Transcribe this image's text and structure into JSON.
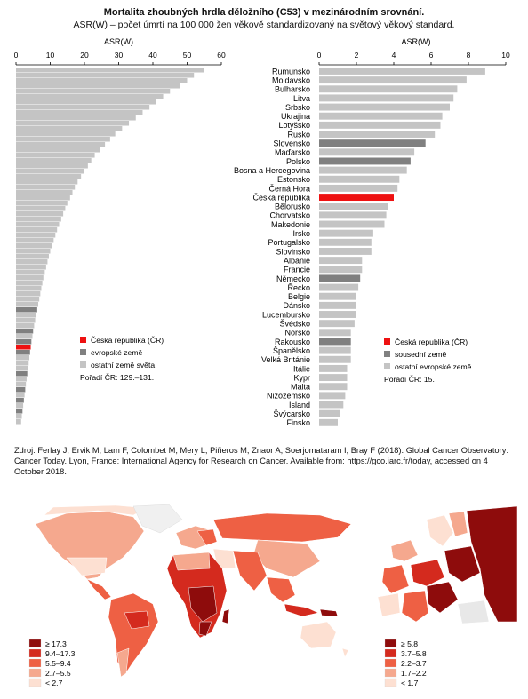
{
  "header": {
    "title": "Mortalita zhoubných hrdla děložního (C53) v mezinárodním srovnání.",
    "subtitle": "ASR(W) – počet úmrtí na 100 000 žen věkově standardizovaný na světový věkový standard."
  },
  "colors": {
    "cz": "#ee1111",
    "neighbor": "#808080",
    "other": "#c4c4c4"
  },
  "chart_data": [
    {
      "type": "bar",
      "orientation": "horizontal",
      "xlabel": "ASR(W)",
      "xlim": [
        0,
        60
      ],
      "ticks": [
        0,
        10,
        20,
        30,
        40,
        50,
        60
      ],
      "values": [
        55,
        52,
        50,
        48,
        45,
        43,
        41,
        39,
        37,
        35,
        33,
        31,
        29,
        27.5,
        26,
        24.5,
        23,
        22,
        21,
        20,
        19,
        18,
        17.2,
        16.5,
        15.8,
        15,
        14.4,
        13.8,
        13.2,
        12.6,
        12,
        11.5,
        11,
        10.5,
        10,
        9.6,
        9.2,
        8.8,
        8.4,
        8,
        7.7,
        7.4,
        7.1,
        6.8,
        6.5,
        6.2,
        5.9,
        5.6,
        5.3,
        5,
        4.8,
        4.5,
        4.3,
        4.1,
        3.9,
        3.7,
        3.5,
        3.3,
        3.1,
        2.9,
        2.7,
        2.5,
        2.3,
        2.1,
        1.9,
        1.7,
        1.5
      ],
      "legend": [
        {
          "label": "Česká republika (ČR)",
          "color": "#ee1111"
        },
        {
          "label": "evropské země",
          "color": "#808080"
        },
        {
          "label": "ostatní země světa",
          "color": "#c4c4c4"
        }
      ],
      "note": "Pořadí ČR: 129.–131."
    },
    {
      "type": "bar",
      "orientation": "horizontal",
      "xlabel": "ASR(W)",
      "xlim": [
        0,
        10
      ],
      "ticks": [
        0,
        2,
        4,
        6,
        8,
        10
      ],
      "categories": [
        "Rumunsko",
        "Moldavsko",
        "Bulharsko",
        "Litva",
        "Srbsko",
        "Ukrajina",
        "Lotyšsko",
        "Rusko",
        "Slovensko",
        "Maďarsko",
        "Polsko",
        "Bosna a Hercegovina",
        "Estonsko",
        "Černá Hora",
        "Česká republika",
        "Bělorusko",
        "Chorvatsko",
        "Makedonie",
        "Irsko",
        "Portugalsko",
        "Slovinsko",
        "Albánie",
        "Francie",
        "Německo",
        "Řecko",
        "Belgie",
        "Dánsko",
        "Lucembursko",
        "Švédsko",
        "Norsko",
        "Rakousko",
        "Španělsko",
        "Velká Británie",
        "Itálie",
        "Kypr",
        "Malta",
        "Nizozemsko",
        "Island",
        "Švýcarsko",
        "Finsko"
      ],
      "values": [
        8.9,
        7.9,
        7.4,
        7.2,
        7.0,
        6.6,
        6.5,
        6.2,
        5.7,
        5.1,
        4.9,
        4.7,
        4.3,
        4.2,
        4.0,
        3.7,
        3.6,
        3.5,
        2.9,
        2.8,
        2.8,
        2.3,
        2.3,
        2.2,
        2.1,
        2.0,
        2.0,
        2.0,
        1.9,
        1.7,
        1.7,
        1.7,
        1.7,
        1.5,
        1.5,
        1.5,
        1.4,
        1.3,
        1.1,
        1.0
      ],
      "groups": [
        "other",
        "other",
        "other",
        "other",
        "other",
        "other",
        "other",
        "other",
        "neighbor",
        "other",
        "neighbor",
        "other",
        "other",
        "other",
        "cz",
        "other",
        "other",
        "other",
        "other",
        "other",
        "other",
        "other",
        "other",
        "neighbor",
        "other",
        "other",
        "other",
        "other",
        "other",
        "other",
        "neighbor",
        "other",
        "other",
        "other",
        "other",
        "other",
        "other",
        "other",
        "other",
        "other"
      ],
      "legend": [
        {
          "label": "Česká republika (ČR)",
          "color": "#ee1111"
        },
        {
          "label": "sousední země",
          "color": "#808080"
        },
        {
          "label": "ostatní evropské země",
          "color": "#c4c4c4"
        }
      ],
      "note": "Pořadí ČR: 15."
    }
  ],
  "source": "Zdroj: Ferlay J, Ervik M, Lam F, Colombet M, Mery L, Piñeros M, Znaor A, Soerjomataram I, Bray F (2018). Global Cancer Observatory: Cancer Today. Lyon, France: International Agency for Research on Cancer. Available from: https://gco.iarc.fr/today, accessed on 4 October 2018.",
  "maps": {
    "world_legend": [
      {
        "label": "≥ 17.3",
        "color": "#8e0c0c"
      },
      {
        "label": "9.4–17.3",
        "color": "#d42a1e"
      },
      {
        "label": "5.5–9.4",
        "color": "#ee6044"
      },
      {
        "label": "2.7–5.5",
        "color": "#f5a88e"
      },
      {
        "label": "< 2.7",
        "color": "#fde0d2"
      }
    ],
    "europe_legend": [
      {
        "label": "≥ 5.8",
        "color": "#8e0c0c"
      },
      {
        "label": "3.7–5.8",
        "color": "#d42a1e"
      },
      {
        "label": "2.2–3.7",
        "color": "#ee6044"
      },
      {
        "label": "1.7–2.2",
        "color": "#f5a88e"
      },
      {
        "label": "< 1.7",
        "color": "#fde0d2"
      }
    ]
  }
}
